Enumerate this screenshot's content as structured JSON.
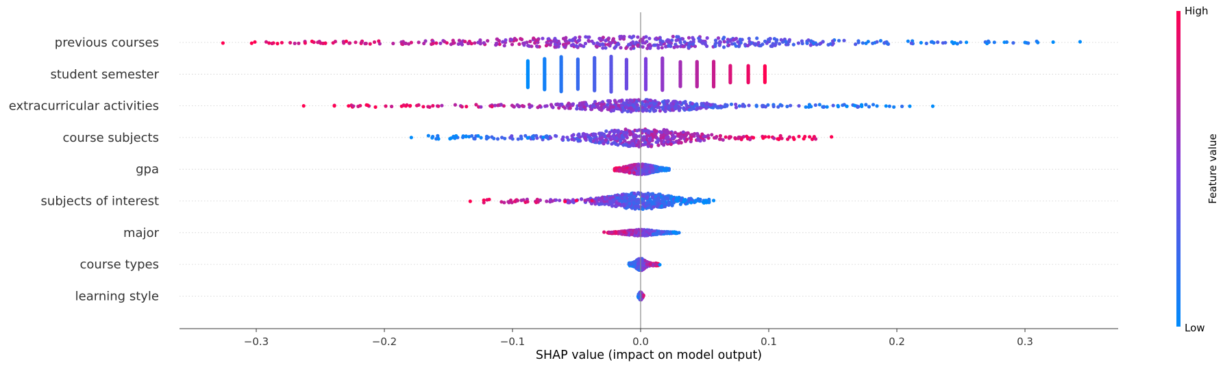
{
  "chart_data": {
    "type": "scatter",
    "subtype": "shap-beeswarm",
    "xlabel": "SHAP value (impact on model output)",
    "xlim": [
      -0.36,
      0.37
    ],
    "xticks": [
      -0.3,
      -0.2,
      -0.1,
      0.0,
      0.1,
      0.2,
      0.3
    ],
    "xtick_labels": [
      "−0.3",
      "−0.2",
      "−0.1",
      "0.0",
      "0.1",
      "0.2",
      "0.3"
    ],
    "colorbar": {
      "label": "Feature value",
      "high": "High",
      "low": "Low",
      "low_color": "#008bfb",
      "mid_color": "#7d3fdc",
      "high_color": "#ff0051"
    },
    "features": [
      {
        "name": "previous courses",
        "range": [
          -0.33,
          0.345
        ],
        "spread": 0.09,
        "width": 6,
        "dir": -1,
        "kind": "cont",
        "outliers": [
          [
            -0.326,
            1
          ],
          [
            -0.29,
            0.95
          ],
          [
            -0.28,
            0.95
          ],
          [
            -0.255,
            0.9
          ],
          [
            -0.24,
            0.9
          ],
          [
            0.3,
            0.05
          ],
          [
            0.31,
            0.05
          ],
          [
            0.322,
            0
          ],
          [
            0.343,
            0
          ]
        ]
      },
      {
        "name": "student semester",
        "range": [
          -0.088,
          0.097
        ],
        "kind": "disc",
        "levels": [
          -0.088,
          -0.075,
          -0.062,
          -0.049,
          -0.036,
          -0.023,
          -0.011,
          0.004,
          0.017,
          0.031,
          0.044,
          0.057,
          0.07,
          0.084,
          0.097
        ]
      },
      {
        "name": "extracurricular activities",
        "range": [
          -0.26,
          0.23
        ],
        "spread": 0.035,
        "width": 6,
        "dir": -1,
        "kind": "cont",
        "outliers": [
          [
            -0.263,
            1
          ],
          [
            -0.213,
            1
          ],
          [
            -0.136,
            0.95
          ],
          [
            -0.116,
            0.9
          ],
          [
            0.132,
            0.05
          ],
          [
            0.154,
            0
          ],
          [
            0.161,
            0
          ],
          [
            0.167,
            0
          ],
          [
            0.228,
            0
          ]
        ]
      },
      {
        "name": "course subjects",
        "range": [
          -0.18,
          0.15
        ],
        "spread": 0.028,
        "width": 9,
        "dir": 1,
        "kind": "cont",
        "outliers": [
          [
            -0.179,
            0
          ],
          [
            -0.148,
            0
          ],
          [
            -0.145,
            0.05
          ],
          [
            -0.088,
            0
          ],
          [
            -0.076,
            0
          ],
          [
            0.088,
            1
          ],
          [
            0.149,
            1
          ]
        ]
      },
      {
        "name": "gpa",
        "range": [
          -0.022,
          0.024
        ],
        "spread": 0.009,
        "width": 5,
        "dir": -1,
        "kind": "cont",
        "outliers": []
      },
      {
        "name": "subjects of interest",
        "range": [
          -0.133,
          0.058
        ],
        "spread": 0.02,
        "width": 8,
        "dir": -1,
        "kind": "cont",
        "outliers": [
          [
            -0.133,
            1
          ],
          [
            -0.059,
            1
          ],
          [
            -0.05,
            1
          ],
          [
            -0.038,
            0.9
          ],
          [
            0.043,
            0.05
          ],
          [
            0.051,
            0
          ],
          [
            0.057,
            0
          ]
        ]
      },
      {
        "name": "major",
        "range": [
          -0.031,
          0.031
        ],
        "spread": 0.01,
        "width": 3,
        "dir": -1,
        "kind": "cont",
        "outliers": [
          [
            0.03,
            0.1
          ]
        ]
      },
      {
        "name": "course types",
        "range": [
          -0.01,
          0.015
        ],
        "spread": 0.003,
        "width": 6,
        "dir": 1,
        "kind": "cont",
        "outliers": [
          [
            0.015,
            0
          ]
        ]
      },
      {
        "name": "learning style",
        "range": [
          -0.002,
          0.003
        ],
        "spread": 0.001,
        "width": 4,
        "dir": 1,
        "kind": "narrow",
        "outliers": []
      }
    ]
  }
}
